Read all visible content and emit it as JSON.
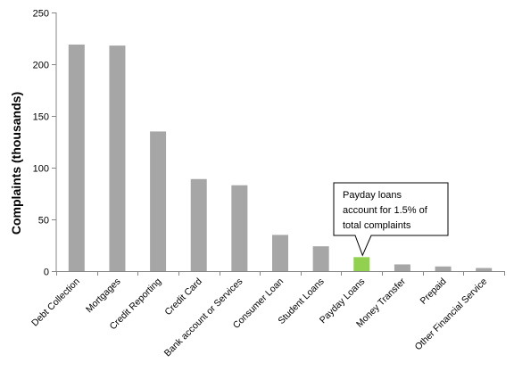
{
  "chart_data": {
    "type": "bar",
    "title": "",
    "xlabel": "",
    "ylabel": "Complaints (thousands)",
    "ylim": [
      0,
      250
    ],
    "yticks": [
      0,
      50,
      100,
      150,
      200,
      250
    ],
    "grid": false,
    "categories": [
      "Debt Collection",
      "Mortgages",
      "Credit Reporting",
      "Credit Card",
      "Bank account or Services",
      "Consumer Loan",
      "Student Loans",
      "Payday Loans",
      "Money Transfer",
      "Prepaid",
      "Other Financial Service"
    ],
    "values": [
      219,
      218,
      135,
      89,
      83,
      35,
      24,
      13.5,
      6.5,
      4.5,
      3
    ],
    "bar_color": "#A6A6A6",
    "highlight_category": "Payday Loans",
    "highlight_color": "#92D050",
    "annotation": {
      "lines": [
        "Payday loans",
        "account for 1.5% of",
        "total complaints"
      ],
      "target": "Payday Loans"
    }
  }
}
